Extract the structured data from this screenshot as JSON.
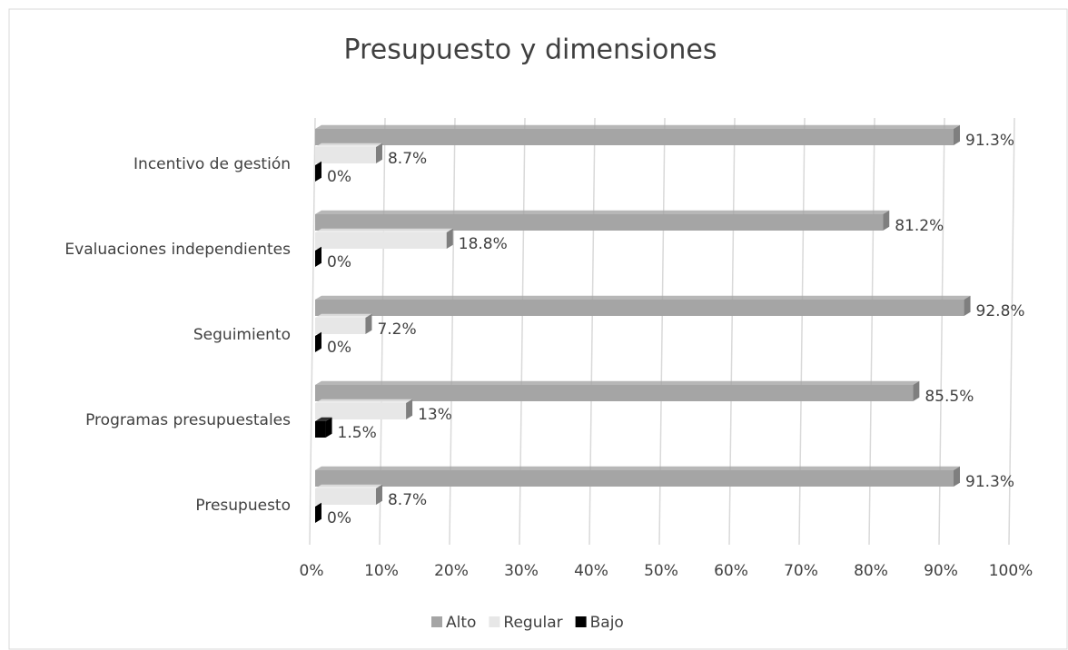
{
  "chart_data": {
    "type": "bar",
    "orientation": "horizontal",
    "title": "Presupuesto y dimensiones",
    "categories": [
      "Incentivo de gestión",
      "Evaluaciones independientes",
      "Seguimiento",
      "Programas presupuestales",
      "Presupuesto"
    ],
    "series": [
      {
        "name": "Alto",
        "color": "#a5a5a5",
        "values": [
          91.3,
          81.2,
          92.8,
          85.5,
          91.3
        ],
        "value_labels": [
          "91.3%",
          "81.2%",
          "92.8%",
          "85.5%",
          "91.3%"
        ]
      },
      {
        "name": "Regular",
        "color": "#e7e7e7",
        "values": [
          8.7,
          18.8,
          7.2,
          13,
          8.7
        ],
        "value_labels": [
          "8.7%",
          "18.8%",
          "7.2%",
          "13%",
          "8.7%"
        ]
      },
      {
        "name": "Bajo",
        "color": "#000000",
        "values": [
          0,
          0,
          0,
          1.5,
          0
        ],
        "value_labels": [
          "0%",
          "0%",
          "0%",
          "1.5%",
          "0%"
        ]
      }
    ],
    "xlim": [
      0,
      100
    ],
    "xticks": [
      {
        "value": 0,
        "label": "0%"
      },
      {
        "value": 10,
        "label": "10%"
      },
      {
        "value": 20,
        "label": "20%"
      },
      {
        "value": 30,
        "label": "30%"
      },
      {
        "value": 40,
        "label": "40%"
      },
      {
        "value": 50,
        "label": "50%"
      },
      {
        "value": 60,
        "label": "60%"
      },
      {
        "value": 70,
        "label": "70%"
      },
      {
        "value": 80,
        "label": "80%"
      },
      {
        "value": 90,
        "label": "90%"
      },
      {
        "value": 100,
        "label": "100%"
      }
    ],
    "grid": true,
    "legend": "bottom"
  }
}
